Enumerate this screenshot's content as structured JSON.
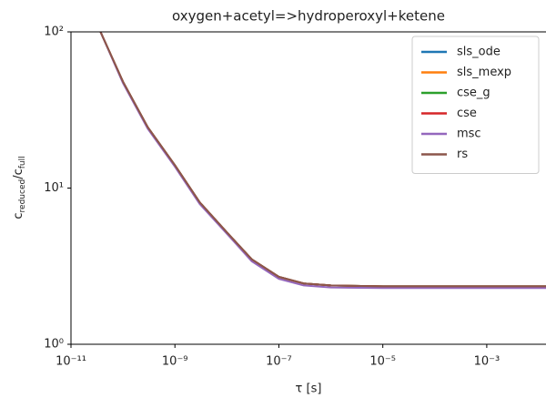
{
  "chart_data": {
    "type": "line",
    "title": "oxygen+acetyl=>hydroperoxyl+ketene",
    "x_label": "τ [s]",
    "y_label": [
      "c",
      "reduced",
      "/c",
      "full"
    ],
    "x_scale": "log",
    "y_scale": "log",
    "grid": false,
    "legend": "upper right",
    "xlim": [
      1e-11,
      0.0138
    ],
    "ylim": [
      1,
      100
    ],
    "xticks": [
      {
        "value": 1e-11,
        "label": "10⁻¹¹"
      },
      {
        "value": 1e-09,
        "label": "10⁻⁹"
      },
      {
        "value": 1e-07,
        "label": "10⁻⁷"
      },
      {
        "value": 1e-05,
        "label": "10⁻⁵"
      },
      {
        "value": 0.001,
        "label": "10⁻³"
      }
    ],
    "yticks": [
      {
        "value": 1,
        "label": "10⁰"
      },
      {
        "value": 10,
        "label": "10¹"
      },
      {
        "value": 100,
        "label": "10²"
      }
    ],
    "x": [
      3.7e-11,
      1e-10,
      3e-10,
      1e-09,
      3e-09,
      1e-08,
      3e-08,
      1e-07,
      3e-07,
      1e-06,
      1e-05,
      0.0001,
      0.001,
      0.01,
      0.0138
    ],
    "series": [
      {
        "name": "sls_ode",
        "color": "#1f77b4",
        "values": [
          100,
          48,
          24.5,
          14,
          8.1,
          5.2,
          3.5,
          2.7,
          2.45,
          2.38,
          2.35,
          2.35,
          2.35,
          2.35,
          2.35
        ]
      },
      {
        "name": "sls_mexp",
        "color": "#ff7f0e",
        "values": [
          100,
          48,
          24.5,
          14,
          8.1,
          5.2,
          3.5,
          2.7,
          2.45,
          2.38,
          2.35,
          2.35,
          2.35,
          2.35,
          2.35
        ]
      },
      {
        "name": "cse_g",
        "color": "#2ca02c",
        "values": [
          100,
          48,
          24.5,
          14,
          8.1,
          5.2,
          3.5,
          2.7,
          2.45,
          2.38,
          2.35,
          2.35,
          2.35,
          2.35,
          2.35
        ]
      },
      {
        "name": "cse",
        "color": "#d62728",
        "values": [
          100,
          48,
          24.5,
          14,
          8.1,
          5.2,
          3.5,
          2.7,
          2.45,
          2.38,
          2.35,
          2.35,
          2.35,
          2.35,
          2.35
        ]
      },
      {
        "name": "msc",
        "color": "#9467bd",
        "values": [
          100,
          47,
          24,
          13.7,
          7.9,
          5.1,
          3.4,
          2.62,
          2.38,
          2.31,
          2.29,
          2.29,
          2.29,
          2.29,
          2.29
        ]
      },
      {
        "name": "rs",
        "color": "#8c564b",
        "values": [
          100,
          48,
          24.5,
          14,
          8.1,
          5.2,
          3.5,
          2.7,
          2.45,
          2.38,
          2.35,
          2.35,
          2.35,
          2.35,
          2.35
        ]
      }
    ]
  }
}
